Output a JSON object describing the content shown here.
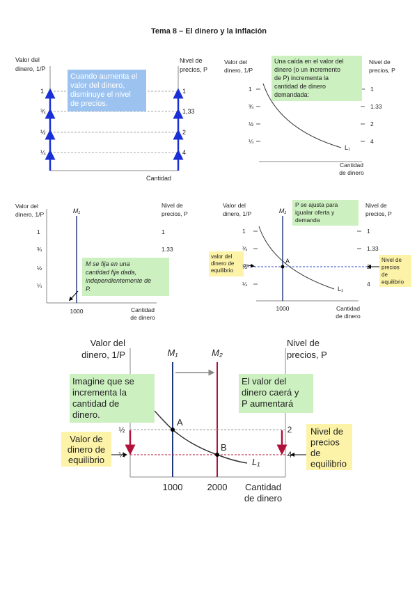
{
  "title": "Tema 8 – El dinero y la inflación",
  "d1": {
    "left_label": [
      "Valor del",
      "dinero, 1/P"
    ],
    "right_label": [
      "Nivel de",
      "precios, P"
    ],
    "left_ticks": [
      "1",
      "¾",
      "½",
      "¼"
    ],
    "right_ticks": [
      "1",
      "1,33",
      "2",
      "4"
    ],
    "x_label": "Cantidad",
    "note": [
      "Cuando aumenta el",
      "valor del dinero,",
      "disminuye el nivel",
      "de precios."
    ]
  },
  "d2": {
    "left_label": [
      "Valor del",
      "dinero, 1/P"
    ],
    "right_label": [
      "Nivel de",
      "precios, P"
    ],
    "left_ticks": [
      "1",
      "¾",
      "½",
      "¼"
    ],
    "right_ticks": [
      "1",
      "1.33",
      "2",
      "4"
    ],
    "x_label": [
      "Cantidad",
      "de dinero"
    ],
    "curve_label": "L₁",
    "note": [
      "Una caída en el valor del",
      "dinero (o un incremento",
      "de P) incrementa la",
      "cantidad de dinero",
      "demandada:"
    ]
  },
  "d3": {
    "left_label": [
      "Valor del",
      "dinero, 1/P"
    ],
    "right_label": [
      "Nivel de",
      "precios, P"
    ],
    "left_ticks": [
      "1",
      "¾",
      "½",
      "¼"
    ],
    "right_ticks": [
      "1",
      "1.33"
    ],
    "x_label": [
      "Cantidad",
      "de dinero"
    ],
    "x_tick": "1000",
    "line_label": "M₁",
    "note": [
      "M se fija en una",
      "cantidad fija dada,",
      "independientemente de",
      "P."
    ]
  },
  "d4": {
    "left_label": [
      "Valor del",
      "dinero, 1/P"
    ],
    "right_label": [
      "Nivel de",
      "precios, P"
    ],
    "left_ticks": [
      "1",
      "¾",
      "½",
      "¼"
    ],
    "right_ticks": [
      "1",
      "1.33",
      "2",
      "4"
    ],
    "x_label": [
      "Cantidad",
      "de dinero"
    ],
    "x_tick": "1000",
    "line_label": "M₁",
    "curve_label": "L₁",
    "point_label": "A",
    "note": [
      "P se ajusta para",
      "igualar oferta y",
      "demanda"
    ],
    "left_note": [
      "valor del",
      "dinero de",
      "equilibrio"
    ],
    "right_note": [
      "Nivel de",
      "precios",
      "de",
      "equilibrio"
    ]
  },
  "d5": {
    "left_label": [
      "Valor del",
      "dinero, 1/P"
    ],
    "right_label": [
      "Nivel de",
      "precios, P"
    ],
    "left_ticks": [
      "½",
      "¼"
    ],
    "right_ticks": [
      "2",
      "4"
    ],
    "x_ticks": [
      "1000",
      "2000"
    ],
    "x_label": [
      "Cantidad",
      "de dinero"
    ],
    "line_labels": [
      "M₁",
      "M₂"
    ],
    "curve_label": "L₁",
    "point_labels": [
      "A",
      "B"
    ],
    "note_left": [
      "Imagine que se",
      "incrementa la",
      "cantidad de",
      "dinero."
    ],
    "note_right": [
      "El valor del",
      "dinero caerá y",
      "P aumentará"
    ],
    "left_note": [
      "Valor de",
      "dinero de",
      "equilibrio"
    ],
    "right_note": [
      "Nivel de",
      "precios",
      "de",
      "equilibrio"
    ]
  }
}
